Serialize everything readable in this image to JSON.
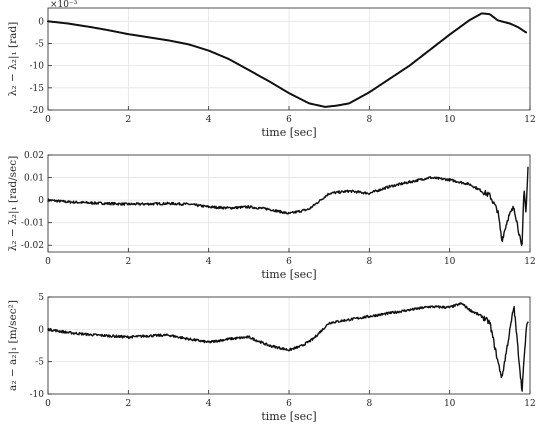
{
  "chart_data": [
    {
      "type": "line",
      "xlabel": "time [sec]",
      "ylabel": "λ₂ − λ₂|₁ [rad]",
      "exponent_label": "×10⁻³",
      "xlim": [
        0,
        12
      ],
      "ylim": [
        -20,
        3
      ],
      "xticks": [
        "0",
        "2",
        "4",
        "6",
        "8",
        "10",
        "12"
      ],
      "yticks": [
        "0",
        "-5",
        "-10",
        "-15",
        "-20"
      ],
      "grid": true,
      "x": [
        0,
        0.5,
        1,
        1.5,
        2,
        2.5,
        3,
        3.5,
        4,
        4.5,
        5,
        5.5,
        6,
        6.5,
        6.9,
        7.2,
        7.5,
        8,
        8.5,
        9,
        9.5,
        10,
        10.5,
        10.8,
        11,
        11.2,
        11.5,
        11.7,
        11.9
      ],
      "y": [
        0,
        -0.5,
        -1.2,
        -2,
        -2.9,
        -3.6,
        -4.3,
        -5.2,
        -6.6,
        -8.5,
        -11,
        -13.5,
        -16.2,
        -18.5,
        -19.3,
        -19,
        -18.5,
        -16,
        -13,
        -10,
        -6.5,
        -3,
        0.3,
        1.8,
        1.6,
        0.2,
        -0.5,
        -1.3,
        -2.5
      ],
      "line_color": "#111111"
    },
    {
      "type": "line",
      "xlabel": "time [sec]",
      "ylabel": "λ̇₂ − λ̇₂|₁ [rad/sec]",
      "xlim": [
        0,
        12
      ],
      "ylim": [
        -0.023,
        0.02
      ],
      "xticks": [
        "0",
        "2",
        "4",
        "6",
        "8",
        "10",
        "12"
      ],
      "yticks": [
        "0.02",
        "0.01",
        "0",
        "-0.01",
        "-0.02"
      ],
      "grid": true,
      "x": [
        0,
        0.5,
        1,
        1.5,
        2,
        2.5,
        3,
        3.5,
        4,
        4.5,
        5,
        5.5,
        6,
        6.5,
        7,
        7.5,
        8,
        8.5,
        9,
        9.5,
        10,
        10.5,
        10.8,
        11,
        11.2,
        11.3,
        11.45,
        11.6,
        11.7,
        11.8,
        11.85,
        11.9,
        11.95
      ],
      "y": [
        0,
        -0.0008,
        -0.0012,
        -0.0015,
        -0.0018,
        -0.0017,
        -0.0015,
        -0.0018,
        -0.003,
        -0.0035,
        -0.003,
        -0.004,
        -0.006,
        -0.004,
        0.003,
        0.004,
        0.003,
        0.006,
        0.008,
        0.01,
        0.009,
        0.007,
        0.004,
        0.002,
        -0.005,
        -0.018,
        -0.008,
        -0.003,
        -0.012,
        -0.022,
        0.006,
        -0.006,
        0.014
      ],
      "line_color": "#111111"
    },
    {
      "type": "line",
      "xlabel": "time [sec]",
      "ylabel": "a₂ − a₂|₁ [m/sec²]",
      "xlim": [
        0,
        12
      ],
      "ylim": [
        -10,
        5
      ],
      "xticks": [
        "0",
        "2",
        "4",
        "6",
        "8",
        "10",
        "12"
      ],
      "yticks": [
        "5",
        "0",
        "-5",
        "-10"
      ],
      "grid": true,
      "x": [
        0,
        0.5,
        1,
        1.5,
        2,
        2.5,
        3,
        3.5,
        4,
        4.5,
        5,
        5.5,
        6,
        6.3,
        6.6,
        7,
        7.5,
        8,
        8.5,
        9,
        9.5,
        10,
        10.3,
        10.5,
        10.8,
        11,
        11.2,
        11.3,
        11.45,
        11.6,
        11.7,
        11.8,
        11.85,
        11.9,
        11.95
      ],
      "y": [
        0,
        -0.5,
        -0.8,
        -1,
        -1.2,
        -1,
        -0.9,
        -1.5,
        -2,
        -1.5,
        -1.2,
        -2.5,
        -3.2,
        -2.6,
        -1.5,
        1,
        1.5,
        2,
        2.5,
        3,
        3.5,
        3.4,
        4,
        3,
        2,
        1,
        -5,
        -7.5,
        -2,
        3.6,
        -3,
        -9.5,
        -5,
        -0.5,
        1.5
      ],
      "line_color": "#111111"
    }
  ]
}
